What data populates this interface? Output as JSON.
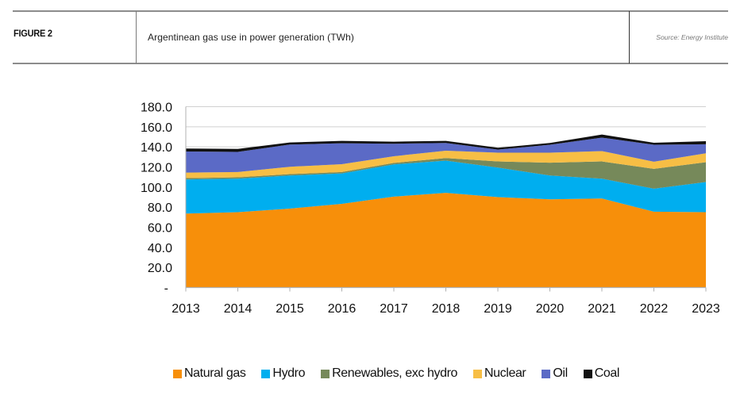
{
  "header": {
    "figure_label": "FIGURE 2",
    "title": "Argentinean gas use in power generation (TWh)",
    "source": "Source: Energy Institute"
  },
  "chart_data": {
    "type": "area",
    "stacked": true,
    "title": "Argentinean gas use in power generation (TWh)",
    "xlabel": "",
    "ylabel": "",
    "x": [
      "2013",
      "2014",
      "2015",
      "2016",
      "2017",
      "2018",
      "2019",
      "2020",
      "2021",
      "2022",
      "2023"
    ],
    "ylim": [
      0,
      180
    ],
    "yticks": [
      0,
      20,
      40,
      60,
      80,
      100,
      120,
      140,
      160,
      180
    ],
    "ytick_labels": [
      "-",
      "20.0",
      "40.0",
      "60.0",
      "80.0",
      "100.0",
      "120.0",
      "140.0",
      "160.0",
      "180.0"
    ],
    "grid": "horizontal",
    "legend_position": "bottom",
    "series": [
      {
        "name": "Natural gas",
        "color": "#F78F0A",
        "values": [
          73.6,
          75.0,
          78.6,
          83.3,
          90.5,
          94.2,
          90.0,
          87.8,
          88.6,
          75.5,
          75.0
        ]
      },
      {
        "name": "Hydro",
        "color": "#00AEEF",
        "values": [
          34.0,
          33.4,
          32.9,
          30.3,
          32.1,
          32.1,
          29.4,
          23.7,
          19.8,
          22.9,
          30.0
        ]
      },
      {
        "name": "Renewables, exc hydro",
        "color": "#76895A",
        "values": [
          1.3,
          1.3,
          1.4,
          1.4,
          1.4,
          2.6,
          6.1,
          12.7,
          17.1,
          19.7,
          19.7
        ]
      },
      {
        "name": "Nuclear",
        "color": "#F7BE45",
        "values": [
          5.5,
          5.3,
          7.3,
          7.8,
          6.7,
          7.3,
          8.7,
          10.0,
          10.3,
          7.1,
          8.9
        ]
      },
      {
        "name": "Oil",
        "color": "#5B6AC6",
        "values": [
          21.0,
          20.0,
          22.1,
          20.8,
          12.4,
          7.7,
          3.1,
          7.9,
          13.4,
          16.9,
          9.0
        ]
      },
      {
        "name": "Coal",
        "color": "#111111",
        "values": [
          3.0,
          3.0,
          2.1,
          2.4,
          2.1,
          2.1,
          1.8,
          1.8,
          3.1,
          2.0,
          3.1
        ]
      }
    ]
  }
}
